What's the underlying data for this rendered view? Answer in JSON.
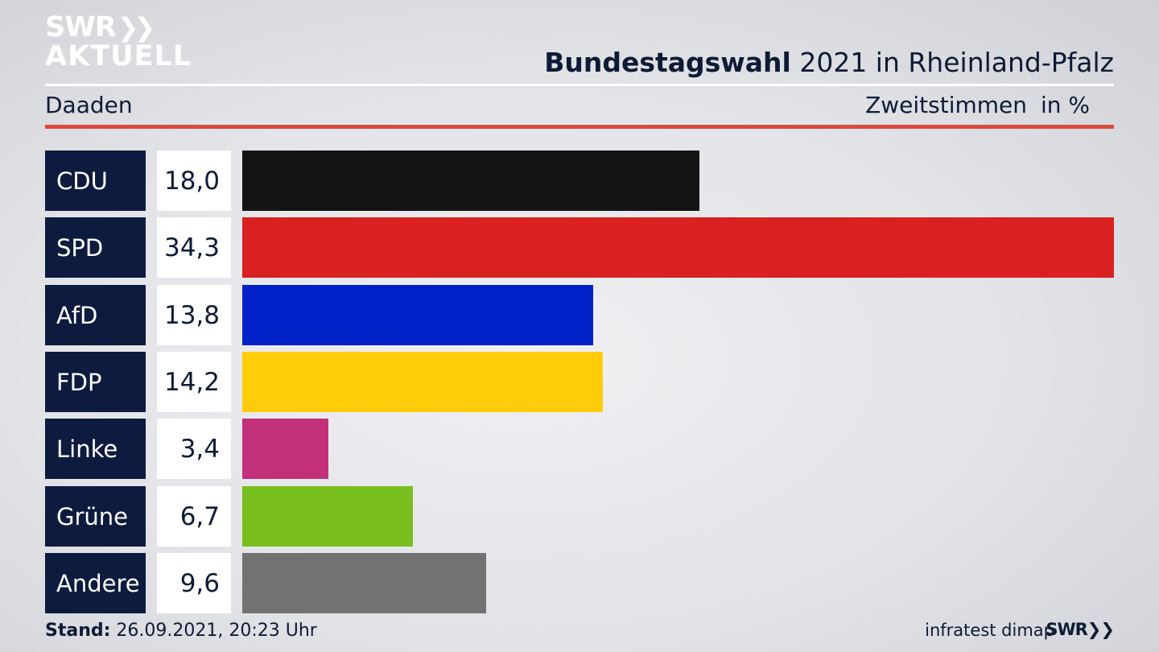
{
  "header": {
    "logo_line1": "SWR",
    "logo_line2": "AKTUELL",
    "title_bold": "Bundestagswahl",
    "title_rest": " 2021 in Rheinland-Pfalz",
    "region": "Daaden",
    "vote_type": "Zweitstimmen",
    "unit": "in %"
  },
  "chart_data": {
    "type": "bar",
    "orientation": "horizontal",
    "title": "Bundestagswahl 2021 in Rheinland-Pfalz",
    "subtitle": "Daaden",
    "ylabel": "Zweitstimmen in %",
    "categories": [
      "CDU",
      "SPD",
      "AfD",
      "FDP",
      "Linke",
      "Grüne",
      "Andere"
    ],
    "values": [
      18.0,
      34.3,
      13.8,
      14.2,
      3.4,
      6.7,
      9.6
    ],
    "labels": [
      "18,0",
      "34,3",
      "13,8",
      "14,2",
      "3,4",
      "6,7",
      "9,6"
    ],
    "colors": [
      "#141414",
      "#d92121",
      "#0021c8",
      "#ffcc0a",
      "#c2307a",
      "#78be1e",
      "#727272"
    ],
    "xlim": [
      0,
      34.3
    ],
    "grid": false,
    "legend": "none"
  },
  "footer": {
    "stand_label": "Stand:",
    "stand_value": " 26.09.2021, 20:23 Uhr",
    "source": "infratest dimap",
    "brand": "SWR"
  }
}
